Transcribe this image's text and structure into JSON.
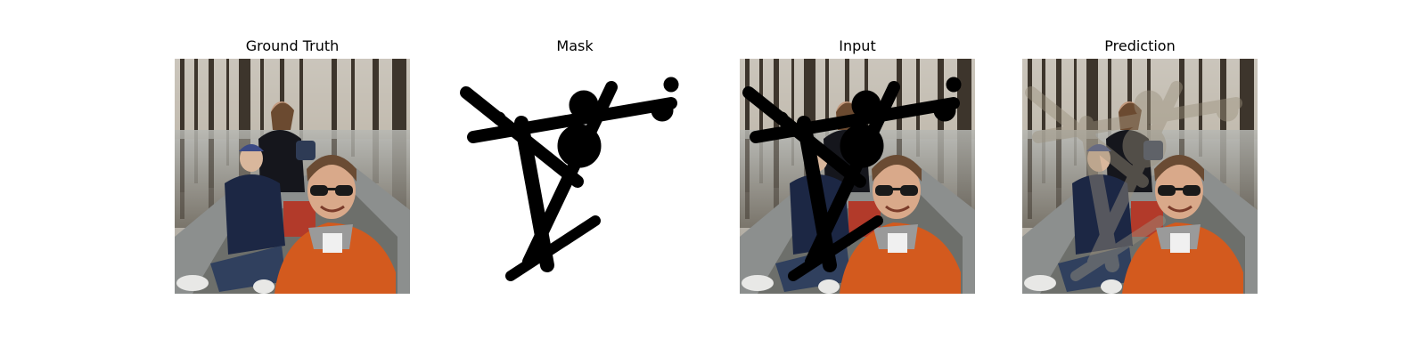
{
  "panels": [
    {
      "title": "Ground Truth"
    },
    {
      "title": "Mask"
    },
    {
      "title": "Input"
    },
    {
      "title": "Prediction"
    }
  ]
}
